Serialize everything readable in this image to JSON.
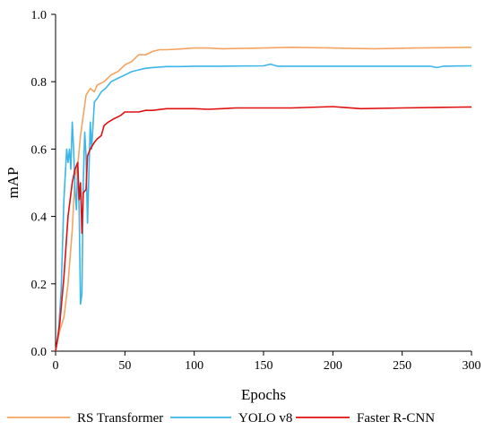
{
  "chart_data": {
    "type": "line",
    "xlabel": "Epochs",
    "ylabel": "mAP",
    "xlim": [
      0,
      300
    ],
    "ylim": [
      0.0,
      1.0
    ],
    "x_ticks": [
      0,
      50,
      100,
      150,
      200,
      250,
      300
    ],
    "y_ticks": [
      "0.0",
      "0.2",
      "0.4",
      "0.6",
      "0.8",
      "1.0"
    ],
    "grid": false,
    "legend_position": "bottom",
    "series": [
      {
        "name": "RS Transformer",
        "color": "#F4A460",
        "points": [
          [
            0,
            0
          ],
          [
            3,
            0.06
          ],
          [
            6,
            0.1
          ],
          [
            9,
            0.2
          ],
          [
            12,
            0.36
          ],
          [
            14,
            0.52
          ],
          [
            16,
            0.55
          ],
          [
            18,
            0.64
          ],
          [
            20,
            0.7
          ],
          [
            22,
            0.76
          ],
          [
            25,
            0.78
          ],
          [
            28,
            0.77
          ],
          [
            30,
            0.79
          ],
          [
            35,
            0.8
          ],
          [
            40,
            0.82
          ],
          [
            45,
            0.83
          ],
          [
            50,
            0.85
          ],
          [
            55,
            0.86
          ],
          [
            60,
            0.88
          ],
          [
            65,
            0.88
          ],
          [
            70,
            0.89
          ],
          [
            75,
            0.895
          ],
          [
            80,
            0.895
          ],
          [
            90,
            0.897
          ],
          [
            100,
            0.9
          ],
          [
            110,
            0.9
          ],
          [
            120,
            0.898
          ],
          [
            150,
            0.9
          ],
          [
            170,
            0.902
          ],
          [
            200,
            0.9
          ],
          [
            230,
            0.898
          ],
          [
            260,
            0.9
          ],
          [
            300,
            0.902
          ]
        ]
      },
      {
        "name": "YOLO v8",
        "color": "#3BB6E8",
        "points": [
          [
            0,
            0
          ],
          [
            2,
            0.05
          ],
          [
            4,
            0.18
          ],
          [
            6,
            0.45
          ],
          [
            8,
            0.6
          ],
          [
            9,
            0.56
          ],
          [
            10,
            0.6
          ],
          [
            11,
            0.54
          ],
          [
            12,
            0.68
          ],
          [
            13,
            0.6
          ],
          [
            14,
            0.48
          ],
          [
            15,
            0.42
          ],
          [
            16,
            0.55
          ],
          [
            17,
            0.42
          ],
          [
            18,
            0.14
          ],
          [
            19,
            0.17
          ],
          [
            20,
            0.5
          ],
          [
            21,
            0.65
          ],
          [
            22,
            0.58
          ],
          [
            23,
            0.38
          ],
          [
            24,
            0.52
          ],
          [
            25,
            0.68
          ],
          [
            26,
            0.6
          ],
          [
            28,
            0.74
          ],
          [
            30,
            0.75
          ],
          [
            33,
            0.77
          ],
          [
            36,
            0.78
          ],
          [
            40,
            0.8
          ],
          [
            45,
            0.81
          ],
          [
            50,
            0.82
          ],
          [
            55,
            0.83
          ],
          [
            60,
            0.835
          ],
          [
            65,
            0.84
          ],
          [
            70,
            0.842
          ],
          [
            80,
            0.845
          ],
          [
            90,
            0.845
          ],
          [
            100,
            0.846
          ],
          [
            120,
            0.846
          ],
          [
            150,
            0.847
          ],
          [
            155,
            0.852
          ],
          [
            160,
            0.846
          ],
          [
            200,
            0.846
          ],
          [
            250,
            0.846
          ],
          [
            270,
            0.846
          ],
          [
            275,
            0.842
          ],
          [
            280,
            0.846
          ],
          [
            300,
            0.847
          ]
        ]
      },
      {
        "name": "Faster R-CNN",
        "color": "#E01010",
        "points": [
          [
            0,
            0
          ],
          [
            3,
            0.08
          ],
          [
            6,
            0.22
          ],
          [
            9,
            0.4
          ],
          [
            12,
            0.5
          ],
          [
            14,
            0.54
          ],
          [
            16,
            0.56
          ],
          [
            17,
            0.45
          ],
          [
            18,
            0.5
          ],
          [
            19,
            0.35
          ],
          [
            20,
            0.47
          ],
          [
            22,
            0.48
          ],
          [
            23,
            0.58
          ],
          [
            25,
            0.6
          ],
          [
            28,
            0.62
          ],
          [
            30,
            0.63
          ],
          [
            33,
            0.64
          ],
          [
            35,
            0.67
          ],
          [
            38,
            0.68
          ],
          [
            42,
            0.69
          ],
          [
            47,
            0.7
          ],
          [
            50,
            0.71
          ],
          [
            55,
            0.71
          ],
          [
            60,
            0.71
          ],
          [
            65,
            0.715
          ],
          [
            70,
            0.715
          ],
          [
            80,
            0.72
          ],
          [
            90,
            0.72
          ],
          [
            100,
            0.72
          ],
          [
            110,
            0.718
          ],
          [
            120,
            0.72
          ],
          [
            130,
            0.722
          ],
          [
            150,
            0.722
          ],
          [
            170,
            0.722
          ],
          [
            200,
            0.726
          ],
          [
            220,
            0.72
          ],
          [
            250,
            0.722
          ],
          [
            280,
            0.724
          ],
          [
            300,
            0.725
          ]
        ]
      }
    ]
  }
}
